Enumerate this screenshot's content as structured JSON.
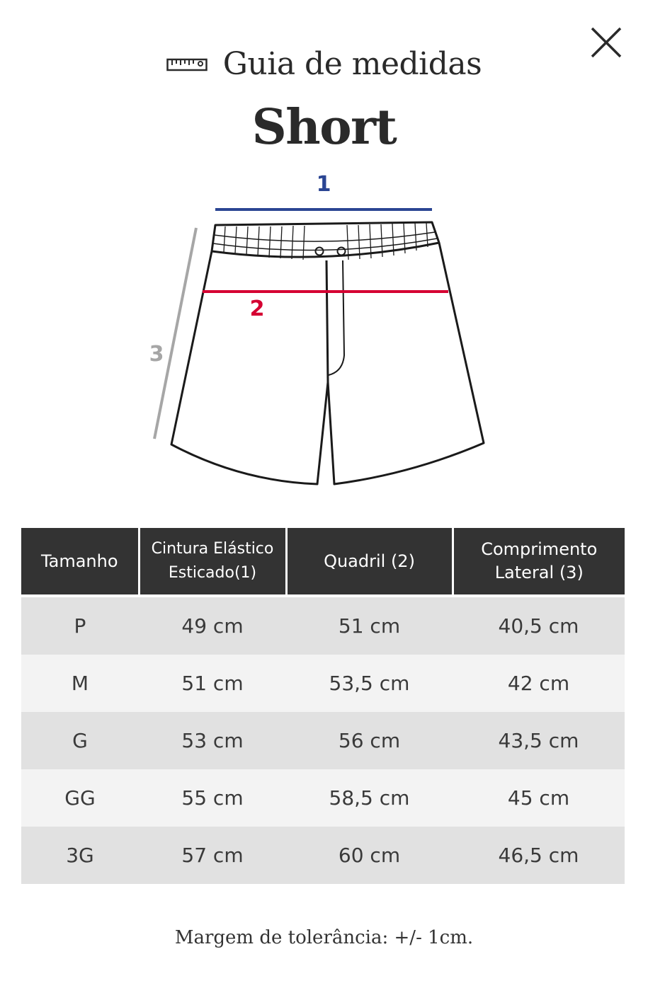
{
  "header": {
    "icon": "ruler-icon",
    "title": "Guia de medidas"
  },
  "product": {
    "title": "Short"
  },
  "diagram": {
    "labels": {
      "waist": "1",
      "hip": "2",
      "length": "3"
    },
    "colors": {
      "waist": "#2b4593",
      "hip": "#d50032",
      "length": "#a6a6a6",
      "outline": "#1a1a1a"
    }
  },
  "table": {
    "headers": [
      "Tamanho",
      "Cintura Elástico Esticado(1)",
      "Quadril (2)",
      "Comprimento Lateral (3)"
    ],
    "rows": [
      [
        "P",
        "49 cm",
        "51 cm",
        "40,5 cm"
      ],
      [
        "M",
        "51 cm",
        "53,5 cm",
        "42 cm"
      ],
      [
        "G",
        "53 cm",
        "56 cm",
        "43,5 cm"
      ],
      [
        "GG",
        "55 cm",
        "58,5 cm",
        "45 cm"
      ],
      [
        "3G",
        "57 cm",
        "60 cm",
        "46,5 cm"
      ]
    ],
    "colors": {
      "header_bg": "#333333",
      "row_odd": "#e1e1e1",
      "row_even": "#f3f3f3"
    }
  },
  "footer": {
    "note": "Margem de tolerância: +/- 1cm."
  },
  "close": {
    "icon": "close-icon"
  }
}
